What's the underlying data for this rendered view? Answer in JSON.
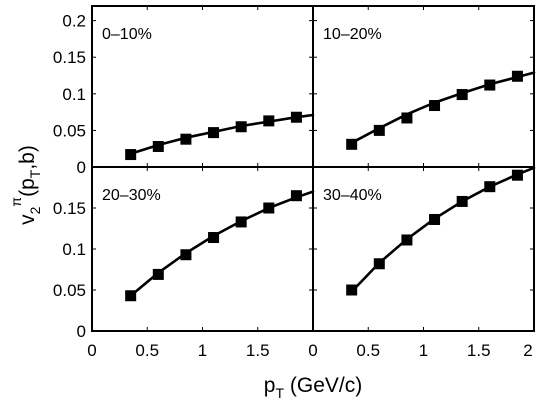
{
  "chart_data": {
    "type": "scatter",
    "xlabel": {
      "base": "p",
      "sub": "T",
      "rest": " (GeV/c)"
    },
    "ylabel": {
      "base": "v",
      "sub": "2",
      "sup": "π",
      "paren_open": "(p",
      "paren_sub": "T",
      "paren_close": ",b)"
    },
    "xlim": [
      0,
      2
    ],
    "ylim_top": [
      0,
      0.22
    ],
    "ylim_bottom": [
      0,
      0.2
    ],
    "x_ticks_left": [
      "0",
      "0.5",
      "1",
      "1.5",
      "0"
    ],
    "x_ticks_right": [
      "0.5",
      "1",
      "1.5",
      "2"
    ],
    "y_ticks_top": [
      "0",
      "0.05",
      "0.1",
      "0.15",
      "0.2"
    ],
    "y_ticks_bottom": [
      "0",
      "0.05",
      "0.1",
      "0.15"
    ],
    "panels": [
      {
        "label": "0–10%",
        "points": {
          "x": [
            0.35,
            0.6,
            0.85,
            1.1,
            1.35,
            1.6,
            1.85
          ],
          "y": [
            0.017,
            0.028,
            0.038,
            0.047,
            0.055,
            0.063,
            0.068
          ]
        },
        "curve": {
          "x": [
            0.35,
            0.6,
            0.85,
            1.1,
            1.35,
            1.6,
            1.85,
            2.0
          ],
          "y": [
            0.018,
            0.03,
            0.04,
            0.048,
            0.056,
            0.062,
            0.068,
            0.071
          ]
        }
      },
      {
        "label": "10–20%",
        "points": {
          "x": [
            0.35,
            0.6,
            0.85,
            1.1,
            1.35,
            1.6,
            1.85
          ],
          "y": [
            0.031,
            0.05,
            0.067,
            0.084,
            0.099,
            0.112,
            0.124
          ]
        },
        "curve": {
          "x": [
            0.35,
            0.6,
            0.85,
            1.1,
            1.35,
            1.6,
            1.85,
            2.0
          ],
          "y": [
            0.033,
            0.053,
            0.072,
            0.088,
            0.101,
            0.113,
            0.123,
            0.129
          ]
        }
      },
      {
        "label": "20–30%",
        "points": {
          "x": [
            0.35,
            0.6,
            0.85,
            1.1,
            1.35,
            1.6,
            1.85
          ],
          "y": [
            0.043,
            0.069,
            0.093,
            0.114,
            0.133,
            0.15,
            0.165
          ]
        },
        "curve": {
          "x": [
            0.35,
            0.6,
            0.85,
            1.1,
            1.35,
            1.6,
            1.85,
            2.0
          ],
          "y": [
            0.043,
            0.071,
            0.095,
            0.116,
            0.134,
            0.15,
            0.163,
            0.17
          ]
        }
      },
      {
        "label": "30–40%",
        "points": {
          "x": [
            0.35,
            0.6,
            0.85,
            1.1,
            1.35,
            1.6,
            1.85
          ],
          "y": [
            0.05,
            0.082,
            0.111,
            0.136,
            0.158,
            0.176,
            0.19
          ]
        },
        "curve": {
          "x": [
            0.35,
            0.6,
            0.85,
            1.1,
            1.35,
            1.6,
            1.85,
            2.0
          ],
          "y": [
            0.048,
            0.083,
            0.112,
            0.137,
            0.158,
            0.176,
            0.191,
            0.199
          ]
        }
      }
    ]
  }
}
